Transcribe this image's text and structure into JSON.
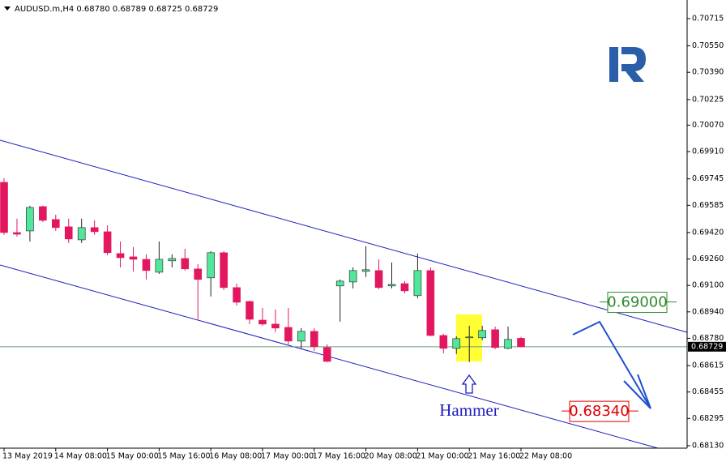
{
  "chart_data": {
    "type": "candlestick",
    "title": "AUDUSD.m,H4  0.68780 0.68789 0.68725 0.68729",
    "categories": [
      "13 May 2019",
      null,
      null,
      null,
      "14 May 08:00",
      null,
      null,
      null,
      "15 May 00:00",
      null,
      null,
      null,
      "15 May 16:00",
      null,
      null,
      null,
      "16 May 08:00",
      null,
      null,
      null,
      "17 May 00:00",
      null,
      null,
      null,
      "17 May 16:00",
      null,
      null,
      null,
      "20 May 08:00",
      null,
      null,
      null,
      "21 May 00:00",
      null,
      null,
      null,
      "21 May 16:00",
      null,
      null,
      null,
      "22 May 08:00"
    ],
    "open": [
      0.69724,
      0.6942,
      0.6943,
      0.69577,
      0.69499,
      0.69455,
      0.69376,
      0.6945,
      0.69425,
      0.69293,
      0.69273,
      0.69258,
      0.6918,
      0.69249,
      0.69263,
      0.692,
      0.69146,
      0.69298,
      0.69087,
      0.69003,
      0.6889,
      0.68866,
      0.68846,
      0.68763,
      0.68822,
      0.68724,
      0.69097,
      0.69121,
      0.69185,
      0.6919,
      0.69097,
      0.69111,
      0.69038,
      0.6919,
      0.68797,
      0.68719,
      0.68783,
      0.68783,
      0.68832,
      0.68719,
      0.6878
    ],
    "high": [
      0.69749,
      0.69504,
      0.69582,
      0.69582,
      0.69528,
      0.69504,
      0.69504,
      0.69494,
      0.69464,
      0.69366,
      0.69332,
      0.69288,
      0.69366,
      0.69288,
      0.69322,
      0.69229,
      0.69307,
      0.69307,
      0.69111,
      0.69008,
      0.68964,
      0.68954,
      0.68964,
      0.68842,
      0.68842,
      0.68743,
      0.69136,
      0.69209,
      0.69337,
      0.69258,
      0.69239,
      0.69126,
      0.69293,
      0.69209,
      0.68807,
      0.68792,
      0.68856,
      0.68856,
      0.68851,
      0.68851,
      0.68789
    ],
    "low": [
      0.69406,
      0.69396,
      0.69366,
      0.69484,
      0.6943,
      0.69357,
      0.69357,
      0.69406,
      0.69283,
      0.69209,
      0.69185,
      0.69136,
      0.6917,
      0.69209,
      0.6919,
      0.68895,
      0.69033,
      0.69072,
      0.68979,
      0.68866,
      0.68856,
      0.68817,
      0.68743,
      0.68719,
      0.68704,
      0.68636,
      0.68881,
      0.69082,
      0.69151,
      0.69077,
      0.69082,
      0.69052,
      0.69023,
      0.68792,
      0.68689,
      0.68685,
      0.68636,
      0.68768,
      0.68714,
      0.68714,
      0.68725
    ],
    "close": [
      0.6942,
      0.6941,
      0.69572,
      0.69494,
      0.6945,
      0.69381,
      0.6945,
      0.69425,
      0.69298,
      0.69268,
      0.69258,
      0.6919,
      0.69258,
      0.69263,
      0.692,
      0.69136,
      0.69298,
      0.69087,
      0.68998,
      0.68895,
      0.68866,
      0.68842,
      0.68763,
      0.68822,
      0.68729,
      0.6864,
      0.69126,
      0.6919,
      0.69195,
      0.69087,
      0.69106,
      0.69067,
      0.6919,
      0.68797,
      0.68719,
      0.68778,
      0.68788,
      0.68827,
      0.68724,
      0.68773,
      0.68729
    ],
    "up_color": "#52e69a",
    "down_color": "#e3175f",
    "ylim": [
      0.68115,
      0.70803
    ],
    "yticks": [
      0.70715,
      {
        "value": 0.7055,
        "label": "0.70550"
      },
      {
        "value": 0.7039,
        "label": "0.70390"
      },
      0.70225,
      {
        "value": 0.7007,
        "label": "0.70070"
      },
      {
        "value": 0.6991,
        "label": "0.69910"
      },
      0.69745,
      0.69585,
      {
        "value": 0.6942,
        "label": "0.69420"
      },
      {
        "value": 0.6926,
        "label": "0.69260"
      },
      {
        "value": 0.691,
        "label": "0.69100"
      },
      {
        "value": 0.6894,
        "label": "0.68940"
      },
      {
        "value": 0.6878,
        "label": "0.68780"
      },
      0.68615,
      0.68455,
      0.68295,
      {
        "value": 0.6813,
        "label": "0.68130"
      }
    ],
    "current_price": 0.68729,
    "levels": [
      {
        "value": 0.69,
        "label": "0.69000",
        "color": "#2e8b2e"
      },
      {
        "value": 0.6834,
        "label": "0.68340",
        "color": "#e00000"
      }
    ],
    "annotation": "Hammer"
  }
}
